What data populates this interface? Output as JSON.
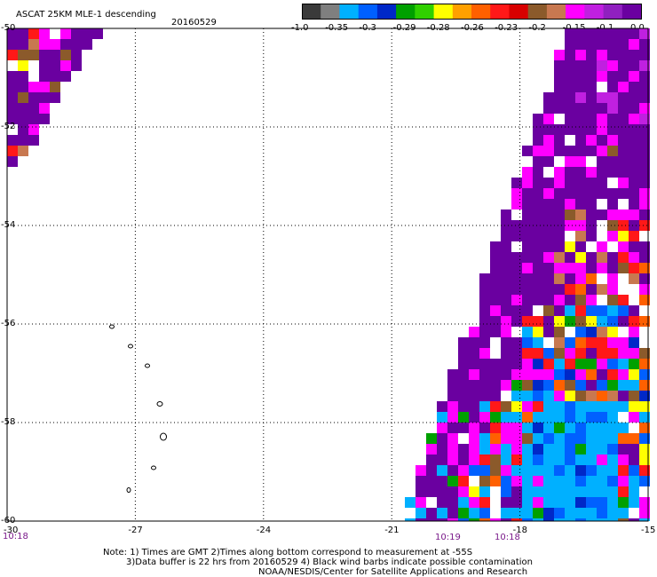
{
  "header": {
    "title": "ASCAT 25KM MLE-1 descending",
    "date": "20160529"
  },
  "colorbar": {
    "colors": [
      "#3a3a3a",
      "#7f7f7f",
      "#00b0ff",
      "#0060ff",
      "#0028c8",
      "#00a000",
      "#30d000",
      "#ffff00",
      "#ffa000",
      "#ff6000",
      "#ff1818",
      "#d80000",
      "#8b5a2b",
      "#c87850",
      "#ff00ff",
      "#c020e0",
      "#9020c0",
      "#6a00a0"
    ],
    "labels": [
      "-1.0",
      "-0.35",
      "-0.3",
      "-0.29",
      "-0.28",
      "-0.26",
      "-0.23",
      "-0.2",
      "-0.15",
      "-0.1",
      "0.0"
    ]
  },
  "axes": {
    "lon_labels": [
      "-30",
      "-27",
      "-24",
      "-21",
      "-18",
      "-15"
    ],
    "lat_labels": [
      "-50",
      "-52",
      "-54",
      "-56",
      "-58",
      "-60"
    ]
  },
  "times": {
    "left": "10:18",
    "mid_a": "10:19",
    "mid_b": "10:18"
  },
  "notes": {
    "line1": "Note: 1) Times are GMT 2)Times along bottom correspond to measurement at -55S",
    "line2": "3)Data buffer is 22 hrs from 20160529 4) Black wind barbs indicate possible contamination",
    "line3": "NOAA/NESDIS/Center for Satellite Applications and Research"
  }
}
